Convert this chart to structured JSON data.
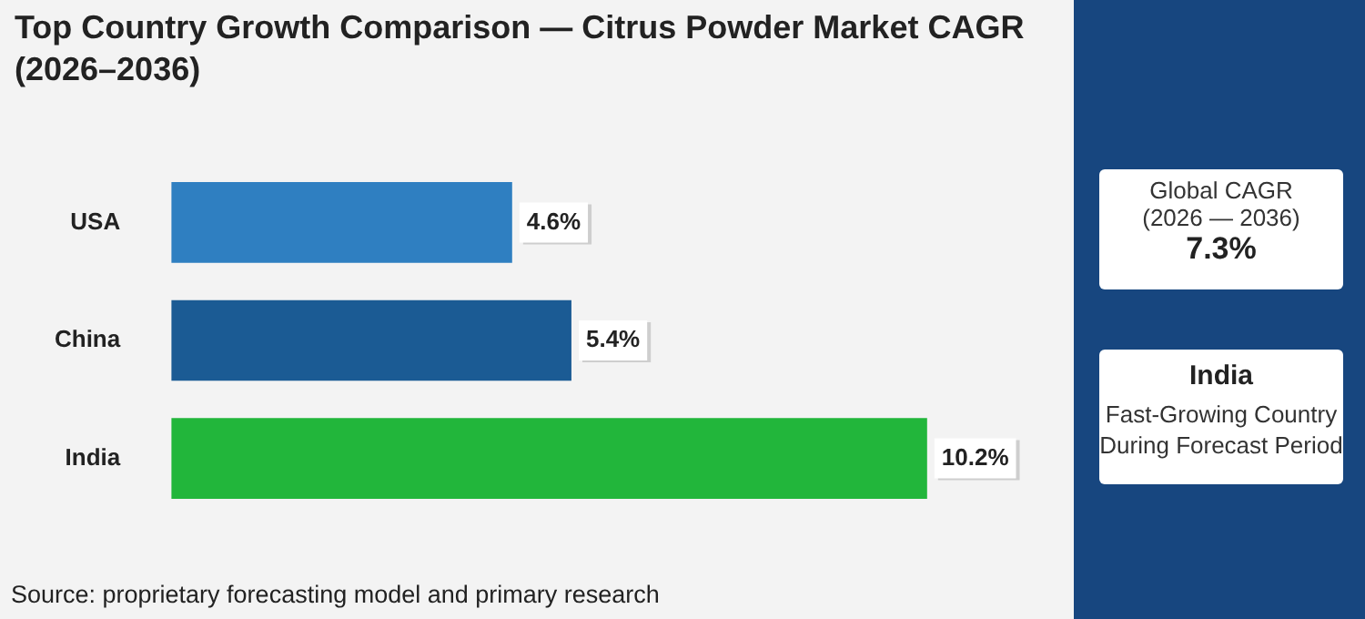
{
  "chart_data": {
    "type": "bar",
    "orientation": "horizontal",
    "title": "Top Country Growth Comparison — Citrus Powder Market CAGR (2026–2036)",
    "categories": [
      "USA",
      "China",
      "India"
    ],
    "values": [
      4.6,
      5.4,
      10.2
    ],
    "colors": [
      "#2f7fc1",
      "#1b5b94",
      "#22b63b"
    ],
    "value_labels": [
      "4.6%",
      "5.4%",
      "10.2%"
    ],
    "legend": false,
    "tick_labels": "y",
    "annotations": [
      "Global CAGR",
      "(2026 — 2036)",
      "7.3%",
      "India",
      "Fast-Growing Country During Forecast Period",
      "Source: proprietary forecasting model and primary research"
    ]
  }
}
